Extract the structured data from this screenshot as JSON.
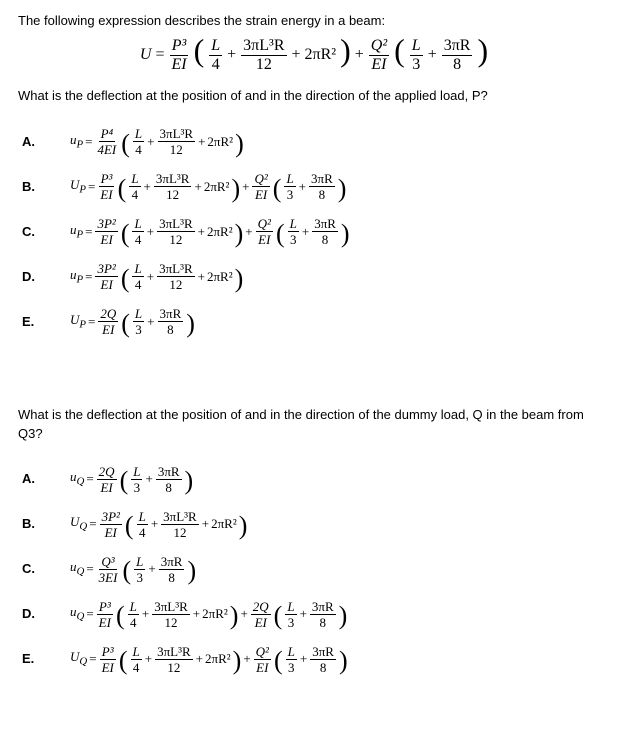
{
  "colors": {
    "text": "#000000",
    "bg": "#ffffff"
  },
  "fonts": {
    "body": "Verdana, Arial, sans-serif",
    "math": "Times New Roman, serif",
    "body_size": 13,
    "math_main_size": 16,
    "math_choice_size": 13
  },
  "intro": "The following expression describes the strain energy in a beam:",
  "main_equation": {
    "lhs": "U",
    "term1": {
      "outer_num": "P³",
      "outer_den": "EI",
      "inner": {
        "f1_num": "L",
        "f1_den": "4",
        "f2_num": "3πL³R",
        "f2_den": "12",
        "tail": "2πR²"
      }
    },
    "term2": {
      "outer_num": "Q²",
      "outer_den": "EI",
      "inner": {
        "f1_num": "L",
        "f1_den": "3",
        "f2_num": "3πR",
        "f2_den": "8"
      }
    }
  },
  "q1": {
    "text": "What is the deflection at the position of and in the direction of the applied load, P?",
    "choices": [
      {
        "label": "A.",
        "lhs_sym": "u",
        "lhs_sub": "P",
        "outer_num": "P⁴",
        "outer_den": "4EI",
        "inner_type": "big",
        "f1_num": "L",
        "f1_den": "4",
        "f2_num": "3πL³R",
        "f2_den": "12",
        "tail": "2πR²",
        "second": null
      },
      {
        "label": "B.",
        "lhs_sym": "U",
        "lhs_sub": "P",
        "outer_num": "P³",
        "outer_den": "EI",
        "inner_type": "big",
        "f1_num": "L",
        "f1_den": "4",
        "f2_num": "3πL³R",
        "f2_den": "12",
        "tail": "2πR²",
        "second": {
          "outer_num": "Q²",
          "outer_den": "EI",
          "f1_num": "L",
          "f1_den": "3",
          "f2_num": "3πR",
          "f2_den": "8"
        }
      },
      {
        "label": "C.",
        "lhs_sym": "u",
        "lhs_sub": "P",
        "outer_num": "3P²",
        "outer_den": "EI",
        "inner_type": "big",
        "f1_num": "L",
        "f1_den": "4",
        "f2_num": "3πL³R",
        "f2_den": "12",
        "tail": "2πR²",
        "second": {
          "outer_num": "Q²",
          "outer_den": "EI",
          "f1_num": "L",
          "f1_den": "3",
          "f2_num": "3πR",
          "f2_den": "8"
        }
      },
      {
        "label": "D.",
        "lhs_sym": "u",
        "lhs_sub": "P",
        "outer_num": "3P²",
        "outer_den": "EI",
        "inner_type": "big",
        "f1_num": "L",
        "f1_den": "4",
        "f2_num": "3πL³R",
        "f2_den": "12",
        "tail": "2πR²",
        "second": null
      },
      {
        "label": "E.",
        "lhs_sym": "U",
        "lhs_sub": "P",
        "outer_num": "2Q",
        "outer_den": "EI",
        "inner_type": "small",
        "f1_num": "L",
        "f1_den": "3",
        "f2_num": "3πR",
        "f2_den": "8",
        "tail": null,
        "second": null
      }
    ]
  },
  "q2": {
    "text": "What is the deflection at the position of and in the direction of the dummy load, Q in the beam from Q3?",
    "choices": [
      {
        "label": "A.",
        "lhs_sym": "u",
        "lhs_sub": "Q",
        "outer_num": "2Q",
        "outer_den": "EI",
        "inner_type": "small",
        "f1_num": "L",
        "f1_den": "3",
        "f2_num": "3πR",
        "f2_den": "8",
        "tail": null,
        "second": null
      },
      {
        "label": "B.",
        "lhs_sym": "U",
        "lhs_sub": "Q",
        "outer_num": "3P²",
        "outer_den": "EI",
        "inner_type": "big",
        "f1_num": "L",
        "f1_den": "4",
        "f2_num": "3πL³R",
        "f2_den": "12",
        "tail": "2πR²",
        "second": null
      },
      {
        "label": "C.",
        "lhs_sym": "u",
        "lhs_sub": "Q",
        "outer_num": "Q³",
        "outer_den": "3EI",
        "inner_type": "small",
        "f1_num": "L",
        "f1_den": "3",
        "f2_num": "3πR",
        "f2_den": "8",
        "tail": null,
        "second": null
      },
      {
        "label": "D.",
        "lhs_sym": "u",
        "lhs_sub": "Q",
        "outer_num": "P³",
        "outer_den": "EI",
        "inner_type": "big",
        "f1_num": "L",
        "f1_den": "4",
        "f2_num": "3πL³R",
        "f2_den": "12",
        "tail": "2πR²",
        "second": {
          "outer_num": "2Q",
          "outer_den": "EI",
          "f1_num": "L",
          "f1_den": "3",
          "f2_num": "3πR",
          "f2_den": "8"
        }
      },
      {
        "label": "E.",
        "lhs_sym": "U",
        "lhs_sub": "Q",
        "outer_num": "P³",
        "outer_den": "EI",
        "inner_type": "big",
        "f1_num": "L",
        "f1_den": "4",
        "f2_num": "3πL³R",
        "f2_den": "12",
        "tail": "2πR²",
        "second": {
          "outer_num": "Q²",
          "outer_den": "EI",
          "f1_num": "L",
          "f1_den": "3",
          "f2_num": "3πR",
          "f2_den": "8"
        }
      }
    ]
  }
}
